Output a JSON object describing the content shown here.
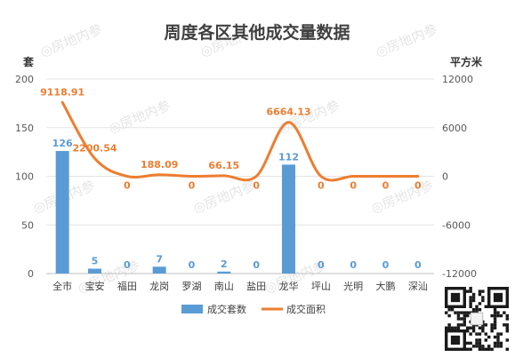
{
  "chart_data": {
    "type": "bar",
    "title": "周度各区其他成交量数据",
    "categories": [
      "全市",
      "宝安",
      "福田",
      "龙岗",
      "罗湖",
      "南山",
      "盐田",
      "龙华",
      "坪山",
      "光明",
      "大鹏",
      "深汕"
    ],
    "series": [
      {
        "name": "成交套数",
        "type": "bar",
        "axis": "left",
        "color": "#5b9bd5",
        "values": [
          126,
          5,
          0,
          7,
          0,
          2,
          0,
          112,
          0,
          0,
          0,
          0
        ],
        "labels": [
          "126",
          "5",
          "0",
          "7",
          "0",
          "2",
          "0",
          "112",
          "0",
          "0",
          "0",
          "0"
        ]
      },
      {
        "name": "成交面积",
        "type": "line",
        "axis": "right",
        "color": "#ed7d31",
        "values": [
          9118.91,
          2200.54,
          0,
          188.09,
          0,
          66.15,
          0,
          6664.13,
          0,
          0,
          0,
          0
        ],
        "labels": [
          "9118.91",
          "2200.54",
          "0",
          "188.09",
          "0",
          "66.15",
          "0",
          "6664.13",
          "0",
          "0",
          "0",
          "0"
        ]
      }
    ],
    "y_left": {
      "unit": "套",
      "min": 0,
      "max": 200,
      "ticks": [
        "0",
        "50",
        "100",
        "150",
        "200"
      ]
    },
    "y_right": {
      "unit": "平方米",
      "min": -12000,
      "max": 12000,
      "ticks": [
        "-12000",
        "-6000",
        "0",
        "6000",
        "12000"
      ]
    },
    "grid": true,
    "legend": "bottom"
  },
  "watermark": "房地内参"
}
